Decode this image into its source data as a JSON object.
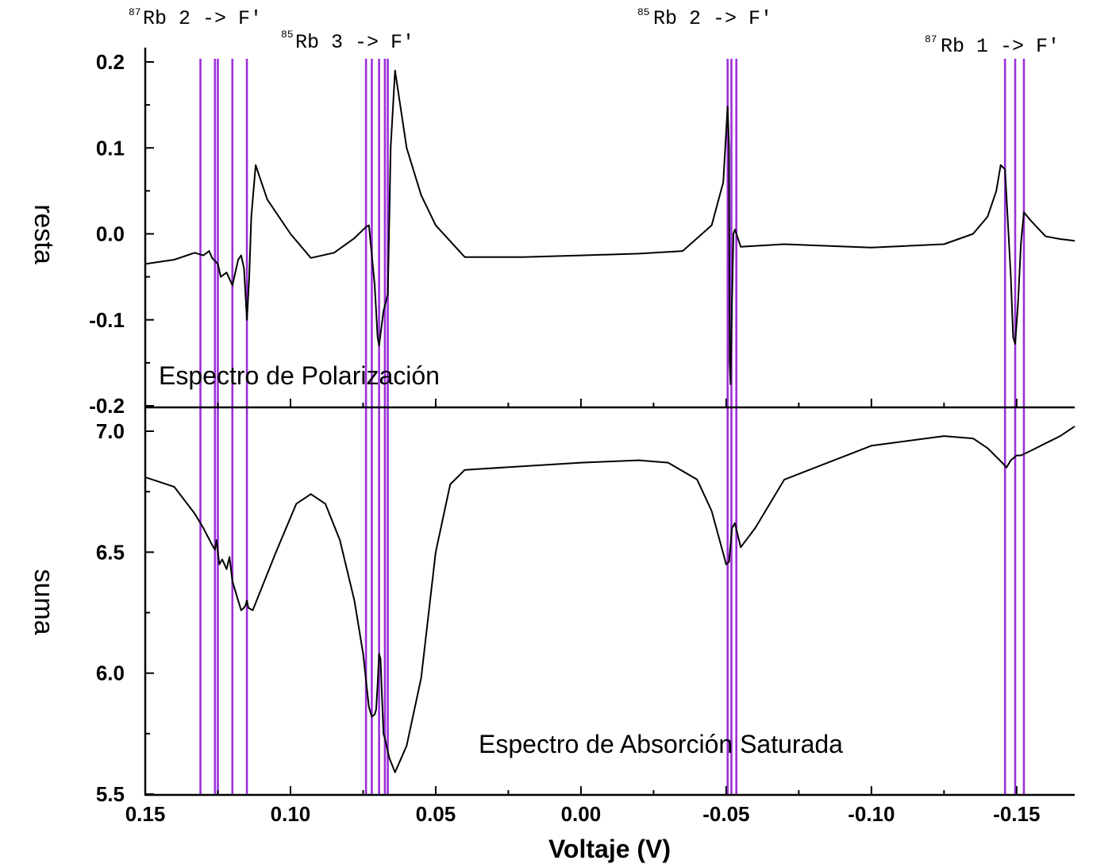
{
  "chart_data": {
    "type": "line",
    "xlabel": "Voltaje (V)",
    "x_ticks": [
      "0.15",
      "0.10",
      "0.05",
      "0.00",
      "-0.05",
      "-0.10",
      "-0.15"
    ],
    "xlim": [
      0.15,
      -0.17
    ],
    "line_color": "#000000",
    "marker_color": "#9b30d9",
    "grid": false,
    "transition_voltages": [
      0.131,
      0.126,
      0.125,
      0.12,
      0.115,
      0.074,
      0.072,
      0.0695,
      0.0675,
      0.0665,
      -0.0505,
      -0.0518,
      -0.0535,
      -0.146,
      -0.1495,
      -0.1525
    ],
    "labels": [
      {
        "iso": "87",
        "text": "Rb 2 -> F'"
      },
      {
        "iso": "85",
        "text": "Rb 3 -> F'"
      },
      {
        "iso": "85",
        "text": "Rb 2 -> F'"
      },
      {
        "iso": "87",
        "text": "Rb 1 -> F'"
      }
    ],
    "panels": [
      {
        "name": "resta",
        "ylabel": "resta",
        "title": "Espectro de Polarización",
        "ylim": [
          -0.2,
          0.2
        ],
        "y_ticks": [
          "0.2",
          "0.1",
          "0.0",
          "-0.1",
          "-0.2"
        ],
        "x": [
          0.15,
          0.14,
          0.133,
          0.13,
          0.128,
          0.127,
          0.125,
          0.124,
          0.122,
          0.12,
          0.118,
          0.117,
          0.116,
          0.115,
          0.1142,
          0.1135,
          0.112,
          0.108,
          0.1,
          0.093,
          0.085,
          0.078,
          0.074,
          0.073,
          0.071,
          0.07,
          0.0695,
          0.068,
          0.0665,
          0.0655,
          0.064,
          0.06,
          0.055,
          0.05,
          0.04,
          0.02,
          0.0,
          -0.02,
          -0.035,
          -0.045,
          -0.049,
          -0.0505,
          -0.051,
          -0.0512,
          -0.0515,
          -0.052,
          -0.0525,
          -0.053,
          -0.055,
          -0.07,
          -0.1,
          -0.125,
          -0.135,
          -0.14,
          -0.143,
          -0.1445,
          -0.146,
          -0.148,
          -0.1488,
          -0.1495,
          -0.1505,
          -0.1515,
          -0.1525,
          -0.155,
          -0.16,
          -0.165,
          -0.17
        ],
        "y": [
          -0.035,
          -0.03,
          -0.022,
          -0.025,
          -0.02,
          -0.028,
          -0.035,
          -0.05,
          -0.045,
          -0.06,
          -0.03,
          -0.025,
          -0.04,
          -0.1,
          -0.05,
          0.02,
          0.08,
          0.04,
          0.0,
          -0.028,
          -0.022,
          -0.005,
          0.008,
          0.01,
          -0.06,
          -0.12,
          -0.13,
          -0.09,
          -0.07,
          0.1,
          0.19,
          0.1,
          0.045,
          0.01,
          -0.027,
          -0.027,
          -0.025,
          -0.023,
          -0.02,
          0.01,
          0.06,
          0.148,
          0.1,
          -0.15,
          -0.175,
          -0.08,
          0.0,
          0.005,
          -0.015,
          -0.012,
          -0.016,
          -0.012,
          0.0,
          0.02,
          0.05,
          0.08,
          0.075,
          -0.05,
          -0.12,
          -0.128,
          -0.08,
          -0.01,
          0.025,
          0.015,
          -0.003,
          -0.006,
          -0.008
        ]
      },
      {
        "name": "suma",
        "ylabel": "suma",
        "title": "Espectro de Absorción Saturada",
        "ylim": [
          5.5,
          7.0
        ],
        "y_ticks": [
          "7.0",
          "6.5",
          "6.0",
          "5.5"
        ],
        "x": [
          0.15,
          0.14,
          0.133,
          0.13,
          0.127,
          0.126,
          0.1255,
          0.1245,
          0.1235,
          0.122,
          0.121,
          0.12,
          0.118,
          0.117,
          0.116,
          0.1155,
          0.115,
          0.1145,
          0.113,
          0.105,
          0.098,
          0.093,
          0.088,
          0.083,
          0.078,
          0.075,
          0.073,
          0.072,
          0.071,
          0.0705,
          0.07,
          0.0695,
          0.069,
          0.068,
          0.0675,
          0.066,
          0.064,
          0.06,
          0.055,
          0.05,
          0.045,
          0.04,
          0.0,
          -0.02,
          -0.03,
          -0.04,
          -0.045,
          -0.05,
          -0.051,
          -0.052,
          -0.053,
          -0.054,
          -0.055,
          -0.06,
          -0.07,
          -0.1,
          -0.125,
          -0.135,
          -0.14,
          -0.145,
          -0.1465,
          -0.148,
          -0.149,
          -0.15,
          -0.1515,
          -0.155,
          -0.16,
          -0.165,
          -0.17
        ],
        "y": [
          6.81,
          6.77,
          6.66,
          6.6,
          6.53,
          6.51,
          6.55,
          6.45,
          6.47,
          6.43,
          6.48,
          6.38,
          6.3,
          6.26,
          6.27,
          6.28,
          6.3,
          6.27,
          6.26,
          6.5,
          6.7,
          6.74,
          6.7,
          6.55,
          6.3,
          6.08,
          5.86,
          5.82,
          5.83,
          5.85,
          5.95,
          6.08,
          6.06,
          5.75,
          5.73,
          5.65,
          5.59,
          5.7,
          5.98,
          6.5,
          6.78,
          6.84,
          6.87,
          6.88,
          6.87,
          6.8,
          6.67,
          6.45,
          6.46,
          6.6,
          6.62,
          6.57,
          6.52,
          6.6,
          6.8,
          6.94,
          6.98,
          6.97,
          6.93,
          6.87,
          6.85,
          6.88,
          6.89,
          6.9,
          6.9,
          6.92,
          6.95,
          6.98,
          7.02
        ]
      }
    ]
  }
}
